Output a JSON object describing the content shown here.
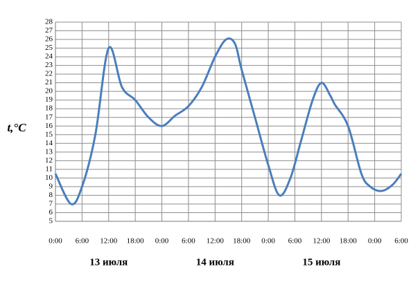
{
  "chart_data": {
    "type": "line",
    "y_label": "t,°C",
    "annotations": [
      "13 июля",
      "14 июля",
      "15 июля"
    ],
    "series": [
      {
        "name": "temperature",
        "color": "#4a7ebb",
        "x": [
          0,
          3.5,
          6,
          9,
          12,
          15,
          18,
          21,
          24,
          27,
          30,
          33,
          36,
          38.5,
          40.5,
          42,
          45,
          48,
          50.5,
          53,
          55.5,
          58,
          60,
          62,
          63,
          66,
          69,
          71,
          73.5,
          76,
          78
        ],
        "values": [
          10.5,
          7,
          9,
          15,
          25,
          20.5,
          19,
          17,
          16,
          17.2,
          18.3,
          20.5,
          24,
          26,
          25.5,
          22.5,
          17,
          11.5,
          8,
          10,
          14.5,
          19,
          21,
          19.5,
          18.5,
          16,
          10.5,
          9,
          8.5,
          9.2,
          10.5
        ]
      }
    ],
    "xlim": [
      0,
      78
    ],
    "xticks": [
      {
        "value": 0,
        "label": "0:00"
      },
      {
        "value": 6,
        "label": "6:00"
      },
      {
        "value": 12,
        "label": "12:00"
      },
      {
        "value": 18,
        "label": "18:00"
      },
      {
        "value": 24,
        "label": "0:00"
      },
      {
        "value": 30,
        "label": "6:00"
      },
      {
        "value": 36,
        "label": "12:00"
      },
      {
        "value": 42,
        "label": "18:00"
      },
      {
        "value": 48,
        "label": "0:00"
      },
      {
        "value": 54,
        "label": "6:00"
      },
      {
        "value": 60,
        "label": "12:00"
      },
      {
        "value": 66,
        "label": "18:00"
      },
      {
        "value": 72,
        "label": "0:00"
      },
      {
        "value": 78,
        "label": "6:00"
      }
    ],
    "ylim": [
      5,
      28
    ],
    "yticks": [
      5,
      6,
      7,
      8,
      9,
      10,
      11,
      12,
      13,
      14,
      15,
      16,
      17,
      18,
      19,
      20,
      21,
      22,
      23,
      24,
      25,
      26,
      27,
      28
    ],
    "grid": true
  }
}
